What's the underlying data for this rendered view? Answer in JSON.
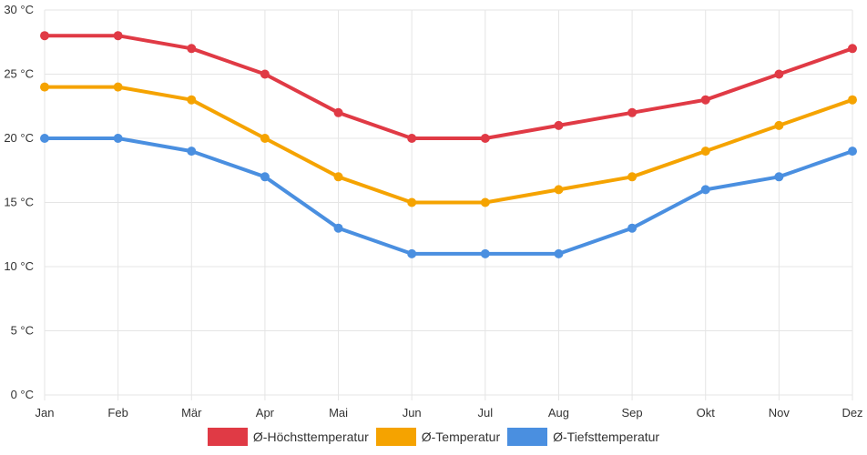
{
  "chart_data": {
    "type": "line",
    "categories": [
      "Jan",
      "Feb",
      "Mär",
      "Apr",
      "Mai",
      "Jun",
      "Jul",
      "Aug",
      "Sep",
      "Okt",
      "Nov",
      "Dez"
    ],
    "y_ticks": [
      "0 °C",
      "5 °C",
      "10 °C",
      "15 °C",
      "20 °C",
      "25 °C",
      "30 °C"
    ],
    "ylim": [
      0,
      30
    ],
    "grid": true,
    "legend_position": "bottom",
    "series": [
      {
        "name": "Ø-Höchsttemperatur",
        "color": "#e03a45",
        "values": [
          28,
          28,
          27,
          25,
          22,
          20,
          20,
          21,
          22,
          23,
          25,
          27
        ]
      },
      {
        "name": "Ø-Temperatur",
        "color": "#f5a300",
        "values": [
          24,
          24,
          23,
          20,
          17,
          15,
          15,
          16,
          17,
          19,
          21,
          23
        ]
      },
      {
        "name": "Ø-Tiefsttemperatur",
        "color": "#4a8fe0",
        "values": [
          20,
          20,
          19,
          17,
          13,
          11,
          11,
          11,
          13,
          16,
          17,
          19
        ]
      }
    ]
  }
}
